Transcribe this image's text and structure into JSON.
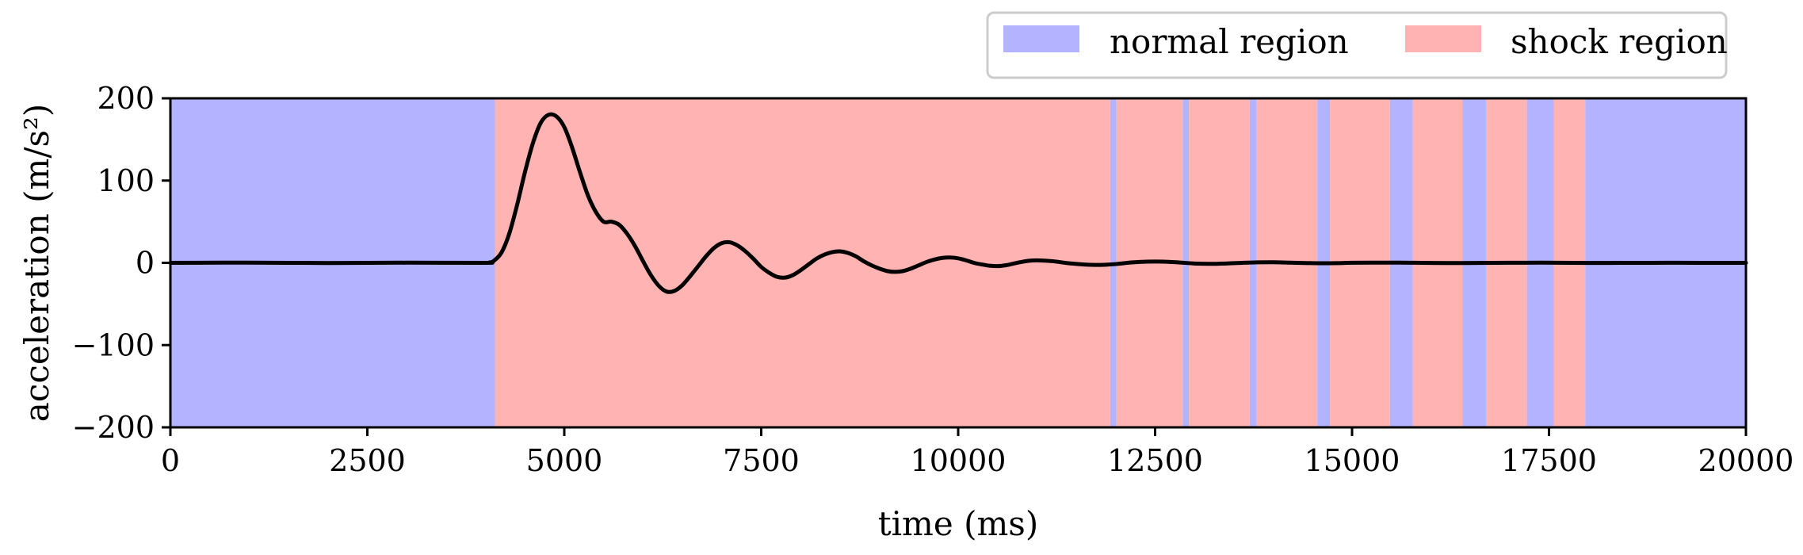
{
  "chart_data": {
    "type": "line",
    "title": "",
    "xlabel": "time (ms)",
    "ylabel": "acceleration (m/s²)",
    "xlim": [
      0,
      20000
    ],
    "ylim": [
      -200,
      200
    ],
    "x_ticks": [
      0,
      2500,
      5000,
      7500,
      10000,
      12500,
      15000,
      17500,
      20000
    ],
    "x_tick_labels": [
      "0",
      "2500",
      "5000",
      "7500",
      "10000",
      "12500",
      "15000",
      "17500",
      "20000"
    ],
    "y_ticks": [
      200,
      100,
      0,
      -100,
      -200
    ],
    "y_tick_labels": [
      "200",
      "100",
      "0",
      "−100",
      "−200"
    ],
    "grid": false,
    "legend": {
      "placement": "top-right, above plot",
      "entries": [
        {
          "label": "normal region",
          "color": "#b3b3ff"
        },
        {
          "label": "shock region",
          "color": "#ffb3b3"
        }
      ]
    },
    "colors": {
      "normal": "#b3b3ff",
      "shock": "#ffb3b3",
      "line": "#000000"
    },
    "regions": [
      {
        "type": "normal",
        "start": 0,
        "end": 4120
      },
      {
        "type": "shock",
        "start": 4120,
        "end": 11930
      },
      {
        "type": "normal",
        "start": 11930,
        "end": 12010
      },
      {
        "type": "shock",
        "start": 12010,
        "end": 12850
      },
      {
        "type": "normal",
        "start": 12850,
        "end": 12930
      },
      {
        "type": "shock",
        "start": 12930,
        "end": 13700
      },
      {
        "type": "normal",
        "start": 13700,
        "end": 13790
      },
      {
        "type": "shock",
        "start": 13790,
        "end": 14560
      },
      {
        "type": "normal",
        "start": 14560,
        "end": 14720
      },
      {
        "type": "shock",
        "start": 14720,
        "end": 15480
      },
      {
        "type": "normal",
        "start": 15480,
        "end": 15770
      },
      {
        "type": "shock",
        "start": 15770,
        "end": 16400
      },
      {
        "type": "normal",
        "start": 16400,
        "end": 16700
      },
      {
        "type": "shock",
        "start": 16700,
        "end": 17220
      },
      {
        "type": "normal",
        "start": 17220,
        "end": 17560
      },
      {
        "type": "shock",
        "start": 17560,
        "end": 17960
      },
      {
        "type": "normal",
        "start": 17960,
        "end": 20000
      }
    ],
    "series": [
      {
        "x": [
          0,
          1000,
          2000,
          3000,
          4000,
          4050,
          4100,
          4200,
          4300,
          4400,
          4500,
          4600,
          4700,
          4800,
          4900,
          5000,
          5100,
          5200,
          5300,
          5400,
          5500,
          5600,
          5700,
          5800,
          5900,
          6000,
          6100,
          6200,
          6300,
          6400,
          6500,
          6600,
          6700,
          6800,
          6900,
          7000,
          7100,
          7200,
          7300,
          7400,
          7500,
          7600,
          7700,
          7800,
          7900,
          8000,
          8100,
          8200,
          8300,
          8400,
          8500,
          8600,
          8700,
          8800,
          8900,
          9000,
          9100,
          9200,
          9300,
          9400,
          9500,
          9600,
          9700,
          9800,
          9900,
          10000,
          10100,
          10200,
          10300,
          10400,
          10500,
          10600,
          10700,
          10800,
          10900,
          11000,
          11200,
          11400,
          11600,
          11800,
          12000,
          12200,
          12400,
          12600,
          12800,
          13000,
          13200,
          13400,
          13600,
          13800,
          14000,
          14200,
          14400,
          14600,
          14800,
          15000,
          15400,
          15800,
          16200,
          16600,
          17000,
          17400,
          17800,
          18200,
          18600,
          19000,
          19400,
          20000
        ],
        "y": [
          0,
          0.3,
          -0.2,
          0.2,
          0,
          0.5,
          2,
          12,
          35,
          70,
          110,
          145,
          170,
          180,
          178,
          165,
          140,
          110,
          82,
          62,
          50,
          50,
          46,
          35,
          20,
          2,
          -15,
          -28,
          -35,
          -34,
          -27,
          -16,
          -4,
          8,
          18,
          24,
          25,
          21,
          14,
          5,
          -5,
          -12,
          -17,
          -18,
          -15,
          -9,
          -2,
          5,
          10,
          13,
          14,
          12,
          8,
          2,
          -3,
          -7,
          -10,
          -11,
          -10,
          -7,
          -3,
          1,
          4,
          6,
          6.5,
          5.5,
          3,
          0,
          -2,
          -3.5,
          -4,
          -3,
          -1,
          1,
          2.5,
          3,
          2,
          -0.5,
          -2,
          -2.5,
          -1.5,
          0.5,
          1.5,
          1.5,
          0.5,
          -0.8,
          -1.2,
          -0.8,
          0,
          0.6,
          0.7,
          0.3,
          -0.2,
          -0.5,
          -0.4,
          0.1,
          0.3,
          0.1,
          -0.2,
          -0.1,
          0.1,
          0.2,
          0,
          -0.1,
          0,
          0.1,
          0,
          0
        ]
      }
    ]
  }
}
